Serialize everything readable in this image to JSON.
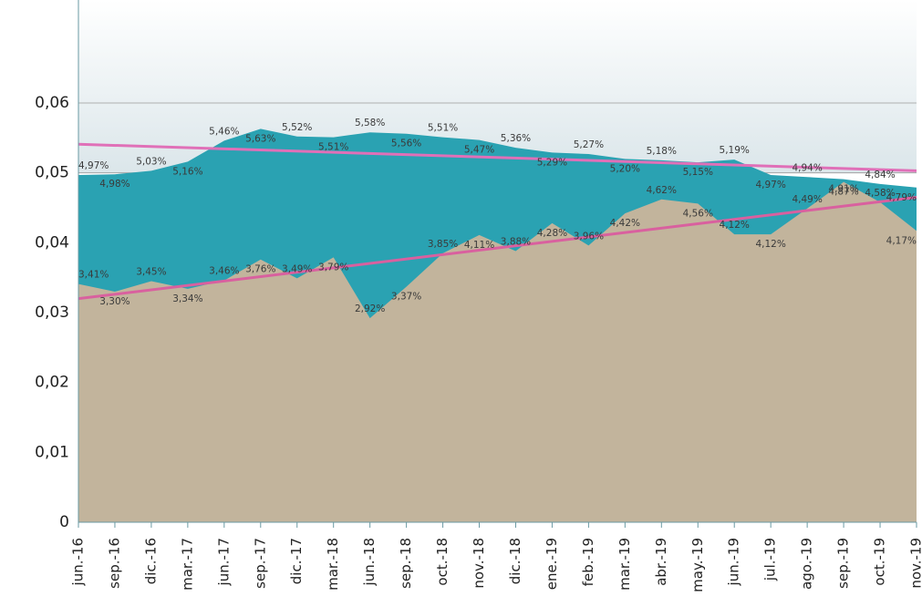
{
  "chart_data": {
    "type": "area",
    "categories": [
      "jun.-16",
      "sep.-16",
      "dic.-16",
      "mar.-17",
      "jun.-17",
      "sep.-17",
      "dic.-17",
      "mar.-18",
      "jun.-18",
      "sep.-18",
      "oct.-18",
      "nov.-18",
      "dic.-18",
      "ene.-19",
      "feb.-19",
      "mar.-19",
      "abr.-19",
      "may.-19",
      "jun.-19",
      "jul.-19",
      "ago.-19",
      "sep.-19",
      "oct.-19",
      "nov.-19"
    ],
    "series": [
      {
        "color": "#2aa2b2",
        "values": [
          0.0497,
          0.0498,
          0.0503,
          0.0516,
          0.0546,
          0.0563,
          0.0552,
          0.0551,
          0.0558,
          0.0556,
          0.0551,
          0.0547,
          0.0536,
          0.0529,
          0.0527,
          0.052,
          0.0518,
          0.0515,
          0.0519,
          0.0497,
          0.0494,
          0.0491,
          0.0484,
          0.0479
        ],
        "value_labels": [
          "4,97%",
          "4,98%",
          "5,03%",
          "5,16%",
          "5,46%",
          "5,63%",
          "5,52%",
          "5,51%",
          "5,58%",
          "5,56%",
          "5,51%",
          "5,47%",
          "5,36%",
          "5,29%",
          "5,27%",
          "5,20%",
          "5,18%",
          "5,15%",
          "5,19%",
          "4,97%",
          "4,94%",
          "4,91%",
          "4,84%",
          "4,79%"
        ]
      },
      {
        "color": "#c2b49c",
        "values": [
          0.0341,
          0.033,
          0.0345,
          0.0334,
          0.0346,
          0.0376,
          0.0349,
          0.0379,
          0.0292,
          0.0337,
          0.0385,
          0.0411,
          0.0388,
          0.0428,
          0.0396,
          0.0442,
          0.0462,
          0.0456,
          0.0412,
          0.0412,
          0.0449,
          0.0487,
          0.0458,
          0.0417
        ],
        "value_labels": [
          "3,41%",
          "3,30%",
          "3,45%",
          "3,34%",
          "3,46%",
          "3,76%",
          "3,49%",
          "3,79%",
          "2,92%",
          "3,37%",
          "3,85%",
          "4,11%",
          "3,88%",
          "4,28%",
          "3,96%",
          "4,42%",
          "4,62%",
          "4,56%",
          "4,12%",
          "4,12%",
          "4,49%",
          "4,87%",
          "4,58%",
          "4,17%"
        ]
      }
    ],
    "trendlines": [
      {
        "color": "#e070b8",
        "values": [
          0.0541,
          0.0503
        ]
      },
      {
        "color": "#d9609f",
        "values": [
          0.032,
          0.0465
        ]
      }
    ],
    "ylim": [
      0,
      0.06
    ],
    "yticks": [
      0,
      {
        "value": 0.01,
        "label": "0,01"
      },
      {
        "value": 0.02,
        "label": "0,02"
      },
      {
        "value": 0.03,
        "label": "0,03"
      },
      {
        "value": 0.04,
        "label": "0,04"
      },
      {
        "value": 0.05,
        "label": "0,05"
      },
      {
        "value": 0.06,
        "label": "0,06"
      }
    ],
    "grid": true
  }
}
